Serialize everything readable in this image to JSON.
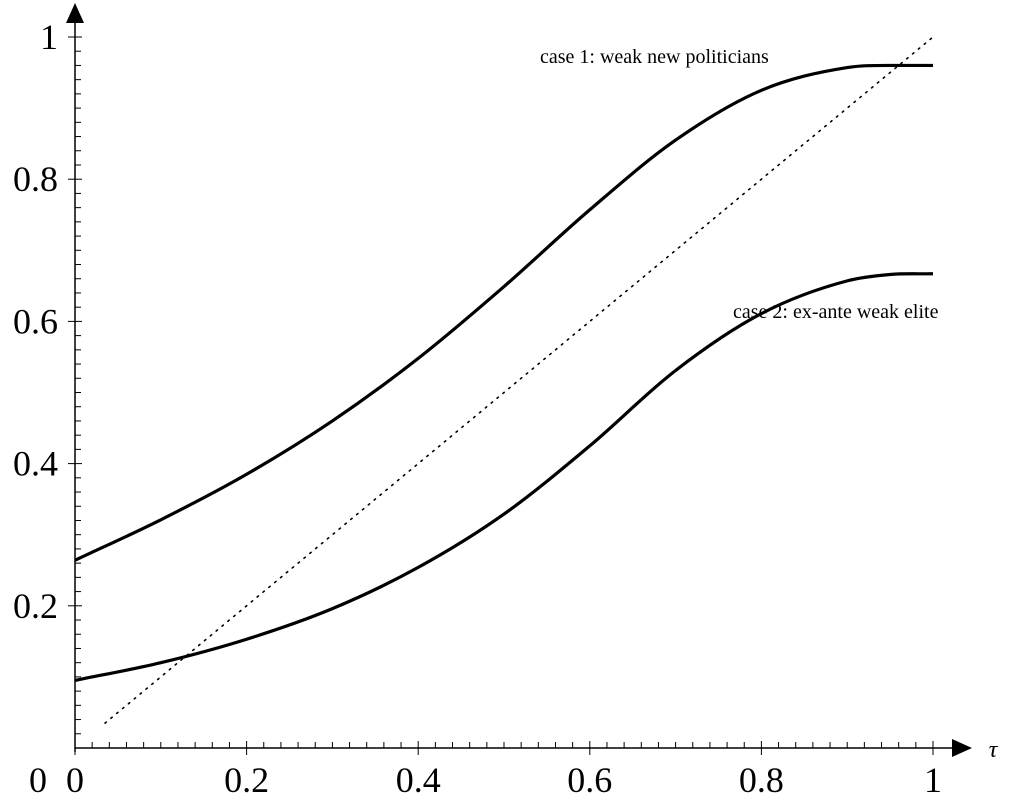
{
  "chart_data": {
    "type": "line",
    "title": "",
    "xlabel": "τ",
    "ylabel": "",
    "xlim": [
      0,
      1
    ],
    "ylim": [
      0,
      1
    ],
    "origin_label": "0",
    "x_ticks": [
      0,
      0.2,
      0.4,
      0.6,
      0.8,
      1
    ],
    "x_tick_labels": [
      "0",
      "0.2",
      "0.4",
      "0.6",
      "0.8",
      "1"
    ],
    "y_ticks": [
      0.2,
      0.4,
      0.6,
      0.8,
      1
    ],
    "y_tick_labels": [
      "0.2",
      "0.4",
      "0.6",
      "0.8",
      "1"
    ],
    "grid": false,
    "legend": "none",
    "series": [
      {
        "name": "case 1: weak new politicians",
        "style": "solid",
        "color": "#000000",
        "x": [
          0,
          0.1,
          0.2,
          0.3,
          0.4,
          0.5,
          0.6,
          0.7,
          0.8,
          0.9,
          0.95,
          1
        ],
        "y": [
          0.264,
          0.321,
          0.385,
          0.46,
          0.548,
          0.649,
          0.757,
          0.855,
          0.925,
          0.957,
          0.96,
          0.96
        ]
      },
      {
        "name": "case 2: ex-ante weak elite",
        "style": "solid",
        "color": "#000000",
        "x": [
          0,
          0.1,
          0.2,
          0.3,
          0.4,
          0.5,
          0.6,
          0.7,
          0.8,
          0.9,
          0.95,
          1
        ],
        "y": [
          0.095,
          0.12,
          0.153,
          0.196,
          0.254,
          0.329,
          0.425,
          0.531,
          0.611,
          0.657,
          0.666,
          0.667
        ]
      },
      {
        "name": "",
        "style": "dotted",
        "color": "#000000",
        "x": [
          0.035,
          1
        ],
        "y": [
          0.035,
          1
        ]
      }
    ]
  }
}
